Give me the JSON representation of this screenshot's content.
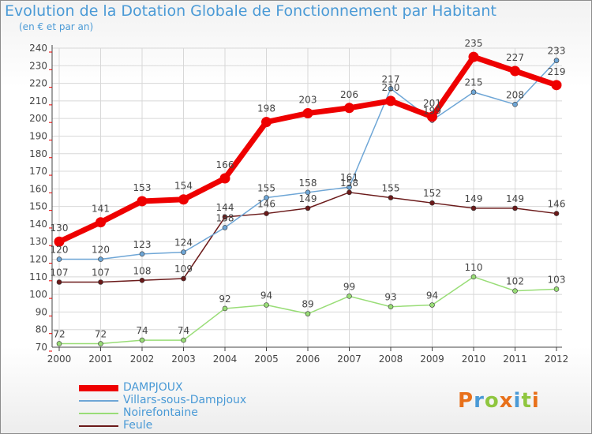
{
  "header": {
    "title": "Evolution de la Dotation Globale de Fonctionnement par Habitant",
    "subtitle": "(en € et par an)"
  },
  "logo": {
    "text": "Proxiti",
    "colors": [
      "#e8701a",
      "#4a9ad6",
      "#8fc63f",
      "#e8701a",
      "#4a9ad6",
      "#8fc63f",
      "#e8701a"
    ]
  },
  "chart_data": {
    "type": "line",
    "x": [
      "2000",
      "2001",
      "2002",
      "2003",
      "2004",
      "2005",
      "2006",
      "2007",
      "2008",
      "2009",
      "2010",
      "2011",
      "2012"
    ],
    "ylim": [
      70,
      240
    ],
    "yticks": [
      70,
      80,
      90,
      100,
      110,
      120,
      130,
      140,
      150,
      160,
      170,
      180,
      190,
      200,
      210,
      220,
      230,
      240
    ],
    "grid": true,
    "legend_position": "bottom-left",
    "series": [
      {
        "name": "Feule",
        "color": "#6b1a1a",
        "width": 1.5,
        "marker": 3,
        "values": [
          107,
          107,
          108,
          109,
          144,
          146,
          149,
          158,
          155,
          152,
          149,
          149,
          146
        ]
      },
      {
        "name": "Noirefontaine",
        "color": "#99dd77",
        "width": 1.5,
        "marker": 3,
        "values": [
          72,
          72,
          74,
          74,
          92,
          94,
          89,
          99,
          93,
          94,
          110,
          102,
          103
        ]
      },
      {
        "name": "Villars-sous-Dampjoux",
        "color": "#6ea6d6",
        "width": 1.5,
        "marker": 3,
        "values": [
          120,
          120,
          123,
          124,
          138,
          155,
          158,
          161,
          217,
          199,
          215,
          208,
          233
        ]
      },
      {
        "name": "DAMPJOUX",
        "color": "#ee0000",
        "width": 7,
        "marker": 6.5,
        "values": [
          130,
          141,
          153,
          154,
          166,
          198,
          203,
          206,
          210,
          201,
          235,
          227,
          219
        ]
      }
    ],
    "data_labels": [
      [
        "107",
        "107",
        "108",
        "109",
        "144",
        "146",
        "149",
        "158",
        "155",
        "152",
        "149",
        "149",
        "146"
      ],
      [
        "72",
        "72",
        "74",
        "74",
        "92",
        "94",
        "89",
        "99",
        "93",
        "94",
        "110",
        "102",
        "103"
      ],
      [
        "120",
        "120",
        "123",
        "124",
        "138",
        "155",
        "158",
        "161",
        "217",
        "199",
        "215",
        "208",
        "233"
      ],
      [
        "130",
        "141",
        "153",
        "154",
        "166",
        "198",
        "203",
        "206",
        "210",
        "201",
        "235",
        "227",
        "219"
      ]
    ]
  },
  "legend": {
    "items": [
      {
        "label": "DAMPJOUX",
        "color": "#ee0000",
        "thickness": 8
      },
      {
        "label": "Villars-sous-Dampjoux",
        "color": "#6ea6d6",
        "thickness": 2
      },
      {
        "label": "Noirefontaine",
        "color": "#99dd77",
        "thickness": 2
      },
      {
        "label": "Feule",
        "color": "#6b1a1a",
        "thickness": 2
      }
    ]
  }
}
